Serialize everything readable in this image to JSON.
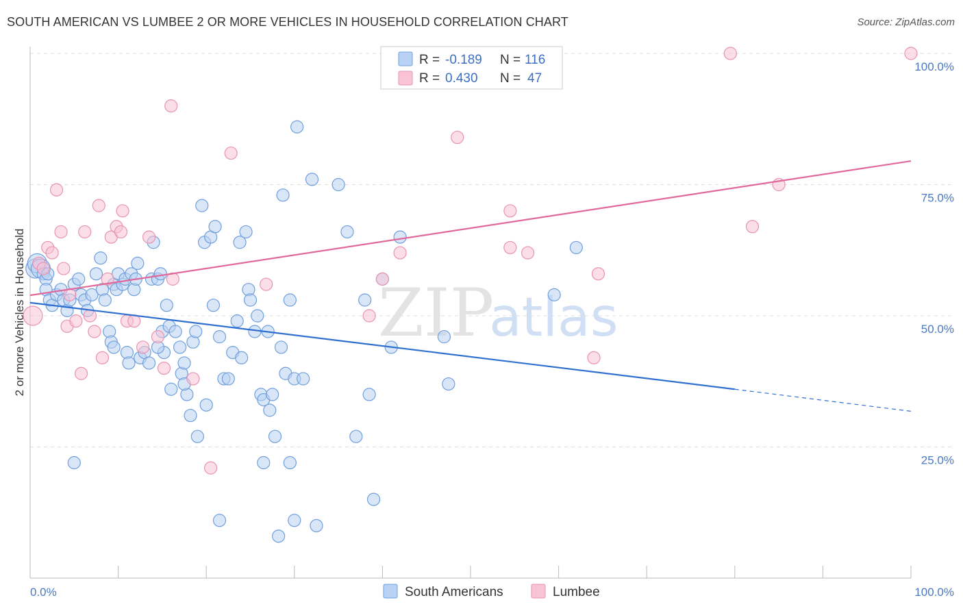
{
  "chart_data": {
    "type": "scatter",
    "title": "SOUTH AMERICAN VS LUMBEE 2 OR MORE VEHICLES IN HOUSEHOLD CORRELATION CHART",
    "source": "Source: ZipAtlas.com",
    "ylabel": "2 or more Vehicles in Household",
    "xlim": [
      0,
      100
    ],
    "ylim": [
      0,
      102
    ],
    "x_tick_labels": [
      "0.0%",
      "100.0%"
    ],
    "y_tick_labels": [
      "100.0%",
      "75.0%",
      "50.0%",
      "25.0%"
    ],
    "y_ticks": [
      100,
      75,
      50,
      25
    ],
    "watermark": [
      "ZIP",
      "atlas"
    ],
    "legend": [
      {
        "r_label": "R =",
        "r_value": "-0.189",
        "n_label": "N =",
        "n_value": "116"
      },
      {
        "r_label": "R =",
        "r_value": "0.430",
        "n_label": "N =",
        "n_value": "47"
      }
    ],
    "series": [
      {
        "name": "South Americans",
        "color": "#6f9fdc",
        "fill": "#b9d1f2",
        "line_color": "#2f6fd0",
        "trend": {
          "x0": 0,
          "y0": 52.5,
          "x1": 80,
          "y1": 36.0,
          "dash_to_x": 100,
          "dash_to_y": 31.8
        },
        "points": [
          [
            0.6,
            59
          ],
          [
            0.8,
            60
          ],
          [
            1.2,
            59
          ],
          [
            1.5,
            58
          ],
          [
            1.8,
            57
          ],
          [
            2.0,
            58
          ],
          [
            1.8,
            55
          ],
          [
            2.2,
            53
          ],
          [
            2.5,
            52
          ],
          [
            3.0,
            54
          ],
          [
            3.5,
            55
          ],
          [
            3.8,
            53
          ],
          [
            4.2,
            51
          ],
          [
            4.5,
            53
          ],
          [
            5.0,
            56
          ],
          [
            5.5,
            57
          ],
          [
            5.8,
            54
          ],
          [
            6.2,
            53
          ],
          [
            6.5,
            51
          ],
          [
            7.0,
            54
          ],
          [
            7.5,
            58
          ],
          [
            8.0,
            61
          ],
          [
            8.2,
            55
          ],
          [
            8.5,
            53
          ],
          [
            9.0,
            47
          ],
          [
            9.2,
            45
          ],
          [
            9.5,
            56
          ],
          [
            9.8,
            55
          ],
          [
            10.0,
            58
          ],
          [
            10.5,
            56
          ],
          [
            10.8,
            57
          ],
          [
            11.0,
            43
          ],
          [
            11.2,
            41
          ],
          [
            11.5,
            58
          ],
          [
            11.8,
            55
          ],
          [
            12.0,
            57
          ],
          [
            12.2,
            60
          ],
          [
            12.5,
            42
          ],
          [
            13.0,
            43
          ],
          [
            13.5,
            41
          ],
          [
            13.8,
            57
          ],
          [
            14.0,
            64
          ],
          [
            14.5,
            57
          ],
          [
            14.8,
            58
          ],
          [
            15.0,
            47
          ],
          [
            15.2,
            43
          ],
          [
            15.5,
            52
          ],
          [
            15.8,
            48
          ],
          [
            16.0,
            36
          ],
          [
            16.5,
            47
          ],
          [
            17.0,
            44
          ],
          [
            17.2,
            39
          ],
          [
            17.5,
            41
          ],
          [
            17.8,
            35
          ],
          [
            18.2,
            31
          ],
          [
            18.5,
            45
          ],
          [
            18.8,
            47
          ],
          [
            19.0,
            27
          ],
          [
            19.5,
            71
          ],
          [
            19.8,
            64
          ],
          [
            20.0,
            33
          ],
          [
            20.5,
            65
          ],
          [
            20.8,
            52
          ],
          [
            21.0,
            67
          ],
          [
            21.5,
            46
          ],
          [
            22.0,
            38
          ],
          [
            22.5,
            38
          ],
          [
            23.0,
            43
          ],
          [
            23.5,
            49
          ],
          [
            23.8,
            64
          ],
          [
            24.0,
            42
          ],
          [
            24.5,
            66
          ],
          [
            24.8,
            55
          ],
          [
            25.0,
            53
          ],
          [
            25.5,
            47
          ],
          [
            25.8,
            50
          ],
          [
            26.2,
            35
          ],
          [
            26.5,
            34
          ],
          [
            27.0,
            47
          ],
          [
            27.2,
            32
          ],
          [
            27.5,
            35
          ],
          [
            27.8,
            27
          ],
          [
            28.5,
            44
          ],
          [
            28.7,
            73
          ],
          [
            29.0,
            39
          ],
          [
            29.5,
            53
          ],
          [
            30.0,
            38
          ],
          [
            30.3,
            86
          ],
          [
            31.0,
            38
          ],
          [
            32.0,
            76
          ],
          [
            35.0,
            75
          ],
          [
            36.0,
            66
          ],
          [
            37.0,
            27
          ],
          [
            38.0,
            53
          ],
          [
            38.5,
            35
          ],
          [
            40.0,
            57
          ],
          [
            41.0,
            44
          ],
          [
            42.0,
            65
          ],
          [
            47.0,
            46
          ],
          [
            47.5,
            37
          ],
          [
            59.5,
            54
          ],
          [
            62.0,
            63
          ],
          [
            5.0,
            22
          ],
          [
            21.5,
            11
          ],
          [
            26.5,
            22
          ],
          [
            28.2,
            8
          ],
          [
            29.5,
            22
          ],
          [
            30.0,
            11
          ],
          [
            32.5,
            10
          ],
          [
            39.0,
            15
          ],
          [
            9.5,
            44
          ],
          [
            17.5,
            37
          ],
          [
            14.5,
            44
          ]
        ]
      },
      {
        "name": "Lumbee",
        "color": "#e992b2",
        "fill": "#f7c3d5",
        "line_color": "#e0689a",
        "trend": {
          "x0": 0,
          "y0": 53.9,
          "x1": 100,
          "y1": 79.5
        },
        "points": [
          [
            0.3,
            50
          ],
          [
            1.0,
            60
          ],
          [
            1.5,
            59
          ],
          [
            2.0,
            63
          ],
          [
            2.5,
            62
          ],
          [
            3.0,
            74
          ],
          [
            3.5,
            66
          ],
          [
            3.8,
            59
          ],
          [
            4.2,
            48
          ],
          [
            4.5,
            54
          ],
          [
            5.2,
            49
          ],
          [
            5.8,
            39
          ],
          [
            6.2,
            66
          ],
          [
            6.8,
            50
          ],
          [
            7.3,
            47
          ],
          [
            7.8,
            71
          ],
          [
            8.2,
            42
          ],
          [
            8.8,
            57
          ],
          [
            9.2,
            65
          ],
          [
            9.8,
            67
          ],
          [
            10.3,
            66
          ],
          [
            10.5,
            70
          ],
          [
            11.0,
            49
          ],
          [
            11.8,
            49
          ],
          [
            12.8,
            44
          ],
          [
            13.5,
            65
          ],
          [
            14.5,
            46
          ],
          [
            15.2,
            40
          ],
          [
            16.2,
            57
          ],
          [
            18.5,
            38
          ],
          [
            20.5,
            21
          ],
          [
            16.0,
            90
          ],
          [
            22.8,
            81
          ],
          [
            26.8,
            56
          ],
          [
            38.5,
            50
          ],
          [
            40.0,
            57
          ],
          [
            42.0,
            62
          ],
          [
            48.5,
            84
          ],
          [
            54.5,
            70
          ],
          [
            54.5,
            63
          ],
          [
            56.5,
            62
          ],
          [
            64.0,
            42
          ],
          [
            64.5,
            58
          ],
          [
            79.5,
            100
          ],
          [
            82.0,
            67
          ],
          [
            85.0,
            75
          ],
          [
            100.0,
            100
          ]
        ]
      }
    ]
  }
}
